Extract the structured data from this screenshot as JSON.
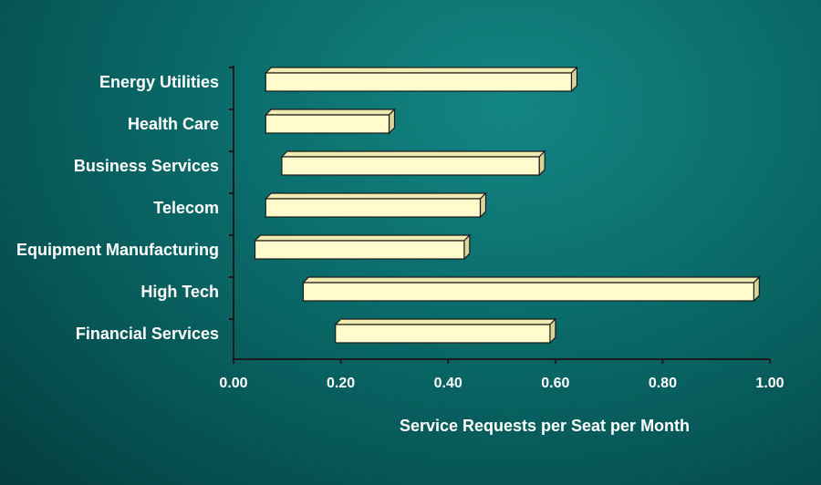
{
  "chart_data": {
    "type": "bar",
    "orientation": "horizontal",
    "style": "3d-floating-range",
    "categories": [
      "Energy Utilities",
      "Health Care",
      "Business Services",
      "Telecom",
      "Equipment Manufacturing",
      "High Tech",
      "Financial Services"
    ],
    "series": [
      {
        "ranges": [
          [
            0.06,
            0.63
          ],
          [
            0.06,
            0.29
          ],
          [
            0.09,
            0.57
          ],
          [
            0.06,
            0.46
          ],
          [
            0.04,
            0.43
          ],
          [
            0.13,
            0.97
          ],
          [
            0.19,
            0.59
          ]
        ]
      }
    ],
    "xlabel": "Service Requests per Seat per Month",
    "ylabel": "",
    "xlim": [
      0.0,
      1.0
    ],
    "xticks": [
      "0.00",
      "0.20",
      "0.40",
      "0.60",
      "0.80",
      "1.00"
    ],
    "grid": false,
    "legend": "none",
    "colors": {
      "bar_face": "#fffbcc",
      "bar_top": "#f0ecb2",
      "bar_side": "#d9d49a",
      "bar_edge": "#1a1a1a",
      "axis": "#1a1a1a",
      "text": "#ffffff",
      "background": "#0b6f6e"
    }
  }
}
